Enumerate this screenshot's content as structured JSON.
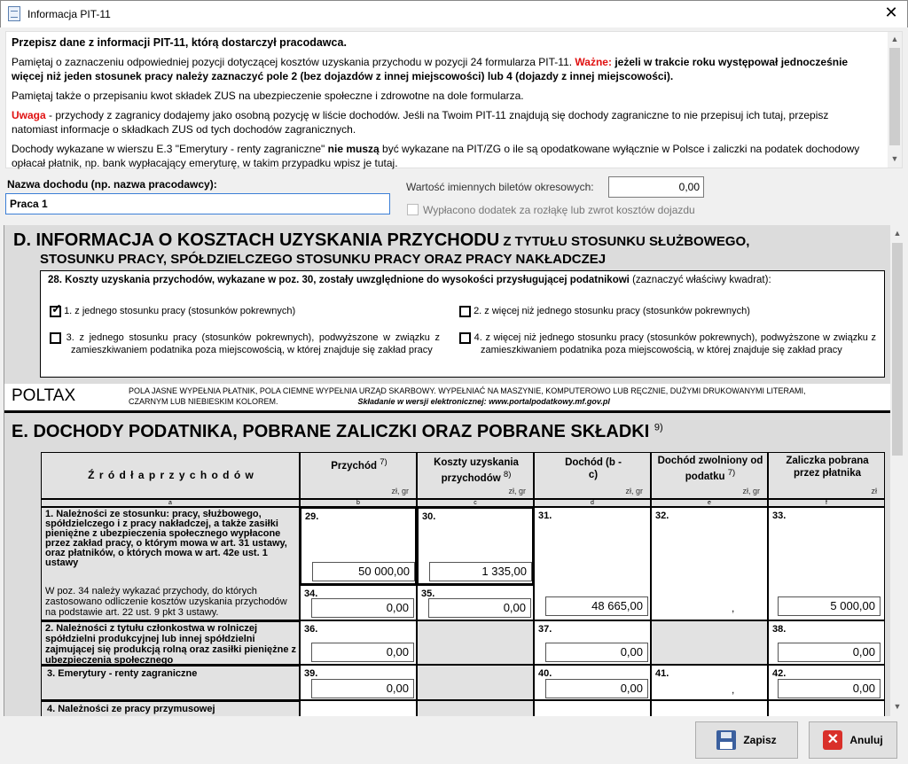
{
  "window": {
    "title": "Informacja PIT-11",
    "close": "✕"
  },
  "info": {
    "heading": "Przepisz dane z informacji PIT-11, którą dostarczył pracodawca.",
    "p1": "Pamiętaj o zaznaczeniu odpowiedniej pozycji dotyczącej kosztów uzyskania przychodu w pozycji 24 formularza PIT-11. ",
    "p1_important": "Ważne:",
    "p1_bold": " jeżeli w trakcie roku występował jednocześnie więcej niż jeden stosunek pracy należy zaznaczyć pole 2 (bez dojazdów z innej miejscowości) lub 4 (dojazdy z innej miejscowości).",
    "p2": "Pamiętaj także o przepisaniu kwot składek ZUS na ubezpieczenie społeczne i zdrowotne na dole formularza.",
    "p3_warn": "Uwaga",
    "p3": " - przychody z zagranicy dodajemy jako osobną pozycję w liście dochodów. Jeśli na Twoim PIT-11 znajdują się dochody zagraniczne to nie przepisuj ich tutaj, przepisz natomiast informacje o składkach ZUS od tych dochodów zagranicznych.",
    "p4a": "Dochody wykazane w wierszu E.3 \"Emerytury - renty zagraniczne\" ",
    "p4b": "nie muszą",
    "p4c": " być wykazane na PIT/ZG o ile są opodatkowane wyłącznie w Polsce i zaliczki na podatek dochodowy opłacał płatnik, np. bank wypłacający emeryturę, w takim przypadku wpisz je tutaj."
  },
  "fields": {
    "name_label": "Nazwa dochodu (np. nazwa pracodawcy):",
    "name_value": "Praca 1",
    "tickets_label": "Wartość imiennych biletów okresowych:",
    "tickets_value": "0,00",
    "allowance_label": "Wypłacono dodatek za rozłąkę lub zwrot kosztów dojazdu",
    "allowance_checked": false
  },
  "sectionD": {
    "title_big": "D. INFORMACJA O KOSZTACH UZYSKANIA PRZYCHODU",
    "title_small1": " Z TYTUŁU STOSUNKU SŁUŻBOWEGO,",
    "title_small2": "STOSUNKU PRACY, SPÓŁDZIELCZEGO STOSUNKU PRACY ORAZ PRACY NAKŁADCZEJ",
    "q28": "28. Koszty uzyskania przychodów, wykazane w poz. 30, zostały uwzględnione do wysokości przysługującej podatnikowi",
    "q28_hint": " (zaznaczyć właściwy kwadrat):",
    "options": [
      {
        "label": "1. z jednego stosunku pracy (stosunków pokrewnych)",
        "checked": true
      },
      {
        "label": "2.  z więcej niż jednego stosunku pracy (stosunków pokrewnych)",
        "checked": false
      },
      {
        "label": "3. z jednego stosunku pracy (stosunków pokrewnych), podwyższone w związku z zamieszkiwaniem podatnika poza miejscowością, w której znajduje się zakład pracy",
        "checked": false
      },
      {
        "label": "4. z więcej niż jednego stosunku pracy (stosunków pokrewnych), podwyższone w związku z zamieszkiwaniem podatnika poza miejscowością, w której znajduje się zakład pracy",
        "checked": false
      }
    ]
  },
  "poltax": {
    "logo": "POLTAX",
    "note": "POLA JASNE WYPEŁNIA PŁATNIK, POLA CIEMNE WYPEŁNIA URZĄD SKARBOWY. WYPEŁNIAĆ NA MASZYNIE, KOMPUTEROWO LUB RĘCZNIE, DUŻYMI DRUKOWANYMI LITERAMI, CZARNYM LUB NIEBIESKIM KOLOREM.",
    "electronic": "Składanie w wersji elektronicznej: www.portalpodatkowy.mf.gov.pl"
  },
  "sectionE": {
    "title": "E. DOCHODY PODATNIKA, POBRANE ZALICZKI ORAZ POBRANE SKŁADKI",
    "title_sup": "9)",
    "headers": [
      {
        "label": "Ź r ó d ł a   p r z y c h o d ó w",
        "sup": "",
        "unit": "",
        "letter": "a"
      },
      {
        "label": "Przychód",
        "sup": "7)",
        "unit": "zł,     gr",
        "letter": "b"
      },
      {
        "label": "Koszty uzyskania przychodów",
        "sup": "8)",
        "unit": "zł,     gr",
        "letter": "c"
      },
      {
        "label": "Dochód (b - c)",
        "sup": "",
        "unit": "zł,     gr",
        "letter": "d"
      },
      {
        "label": "Dochód zwolniony od podatku",
        "sup": "7)",
        "unit": "zł,     gr",
        "letter": "e"
      },
      {
        "label": "Zaliczka pobrana przez płatnika",
        "sup": "",
        "unit": "zł",
        "letter": "f"
      }
    ],
    "row1_label": "1. Należności ze stosunku: pracy, służbowego, spółdzielczego i z pracy nakładczej, a także zasiłki pieniężne z ubezpieczenia społecznego wypłacone przez zakład pracy, o którym mowa w art. 31 ustawy, oraz płatników, o których mowa w art. 42e ust. 1 ustawy",
    "row1b_label": "W poz. 34 należy wykazać przychody, do których zastosowano odliczenie kosztów uzyskania przychodów na podstawie art. 22 ust. 9 pkt 3 ustawy.",
    "row2_label": "2. Należności z tytułu członkostwa w rolniczej spółdzielni produkcyjnej lub innej spółdzielni zajmującej się produkcją rolną oraz zasiłki pieniężne z ubezpieczenia społecznego",
    "row3_label": "3. Emerytury - renty zagraniczne",
    "row4_label": "4. Należności ze pracy przymusowej",
    "cells": {
      "p29": {
        "num": "29.",
        "value": "50 000,00"
      },
      "p30": {
        "num": "30.",
        "value": "1 335,00"
      },
      "p31": {
        "num": "31.",
        "value": "48 665,00"
      },
      "p32": {
        "num": "32.",
        "value": ","
      },
      "p33": {
        "num": "33.",
        "value": "5 000,00"
      },
      "p34": {
        "num": "34.",
        "value": "0,00"
      },
      "p35": {
        "num": "35.",
        "value": "0,00"
      },
      "p36": {
        "num": "36.",
        "value": "0,00"
      },
      "p37": {
        "num": "37.",
        "value": "0,00"
      },
      "p38": {
        "num": "38.",
        "value": "0,00"
      },
      "p39": {
        "num": "39.",
        "value": "0,00"
      },
      "p40": {
        "num": "40.",
        "value": "0,00"
      },
      "p41": {
        "num": "41.",
        "value": ","
      },
      "p42": {
        "num": "42.",
        "value": "0,00"
      }
    }
  },
  "buttons": {
    "save": "Zapisz",
    "cancel": "Anuluj"
  }
}
